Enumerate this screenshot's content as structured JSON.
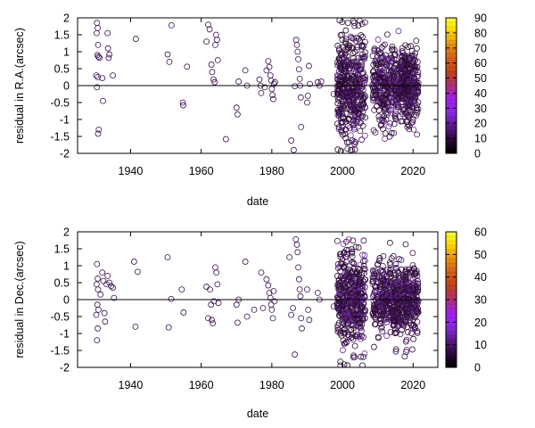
{
  "chart_data": [
    {
      "type": "scatter",
      "title": "",
      "xlabel": "date",
      "ylabel": "residual in R.A.(arcsec)",
      "xlim": [
        1925,
        2027
      ],
      "ylim": [
        -2,
        2
      ],
      "xticks": [
        1940,
        1960,
        1980,
        2000,
        2020
      ],
      "yticks": [
        -2,
        -1.5,
        -1,
        -0.5,
        0,
        0.5,
        1,
        1.5,
        2
      ],
      "ytick_labels": [
        "-2",
        "-1.5",
        "-1",
        "-0.5",
        "0",
        "0.5",
        "1",
        "1.5",
        "2"
      ],
      "zero_line": 0,
      "grid": false,
      "legend": "none",
      "colorbar": {
        "range": [
          0,
          90
        ],
        "ticks": [
          0,
          10,
          20,
          30,
          40,
          50,
          60,
          70,
          80,
          90
        ],
        "colors": [
          "#000000",
          "#2a0a3a",
          "#5a1a8a",
          "#8b2be2",
          "#a020f0",
          "#b0307a",
          "#c2401a",
          "#d2601a",
          "#e89010",
          "#ffd700",
          "#ffff30"
        ]
      },
      "marker_color": "#3a1050",
      "sparse": [
        [
          1930.5,
          1.85
        ],
        [
          1930.7,
          1.7
        ],
        [
          1930.4,
          1.55
        ],
        [
          1930.8,
          1.2
        ],
        [
          1930.6,
          0.9
        ],
        [
          1930.9,
          0.85
        ],
        [
          1930.3,
          0.3
        ],
        [
          1930.7,
          0.25
        ],
        [
          1930.5,
          -0.05
        ],
        [
          1931.2,
          0.82
        ],
        [
          1931.0,
          -1.3
        ],
        [
          1930.8,
          -1.42
        ],
        [
          1932.0,
          0.22
        ],
        [
          1932.2,
          -0.45
        ],
        [
          1933.5,
          1.55
        ],
        [
          1933.6,
          1.1
        ],
        [
          1933.8,
          0.82
        ],
        [
          1934.0,
          0.92
        ],
        [
          1935.0,
          0.3
        ],
        [
          1941.5,
          1.38
        ],
        [
          1950.5,
          0.92
        ],
        [
          1951.0,
          0.7
        ],
        [
          1951.6,
          1.78
        ],
        [
          1954.8,
          -0.5
        ],
        [
          1954.9,
          -0.58
        ],
        [
          1956.0,
          0.56
        ],
        [
          1961.5,
          1.3
        ],
        [
          1962.0,
          1.8
        ],
        [
          1962.4,
          1.66
        ],
        [
          1962.9,
          0.62
        ],
        [
          1963.1,
          0.4
        ],
        [
          1963.5,
          0.18
        ],
        [
          1963.8,
          0.1
        ],
        [
          1964.0,
          1.2
        ],
        [
          1964.2,
          1.5
        ],
        [
          1964.5,
          1.35
        ],
        [
          1964.7,
          0.75
        ],
        [
          1967.0,
          -1.58
        ],
        [
          1970.0,
          -0.65
        ],
        [
          1970.3,
          -0.85
        ],
        [
          1970.6,
          0.12
        ],
        [
          1972.5,
          0.45
        ],
        [
          1973.0,
          0.0
        ],
        [
          1976.5,
          0.18
        ],
        [
          1976.8,
          0.0
        ],
        [
          1977.0,
          -0.22
        ],
        [
          1978.0,
          -0.05
        ],
        [
          1978.5,
          0.45
        ],
        [
          1979.0,
          0.72
        ],
        [
          1979.3,
          0.55
        ],
        [
          1979.6,
          0.3
        ],
        [
          1979.8,
          0.15
        ],
        [
          1980.0,
          -0.1
        ],
        [
          1980.2,
          -0.28
        ],
        [
          1980.4,
          -0.4
        ],
        [
          1980.6,
          0.05
        ],
        [
          1980.9,
          0.1
        ],
        [
          1985.5,
          -1.62
        ],
        [
          1986.2,
          -1.9
        ],
        [
          1986.5,
          -0.02
        ],
        [
          1986.9,
          1.35
        ],
        [
          1987.1,
          1.2
        ],
        [
          1987.3,
          1.0
        ],
        [
          1987.5,
          0.78
        ],
        [
          1987.7,
          0.48
        ],
        [
          1987.9,
          0.2
        ],
        [
          1988.0,
          0.0
        ],
        [
          1988.2,
          -0.35
        ],
        [
          1988.3,
          -1.22
        ],
        [
          1990.0,
          -0.5
        ],
        [
          1990.2,
          -0.3
        ],
        [
          1990.5,
          0.58
        ],
        [
          1990.8,
          0.05
        ],
        [
          1993.0,
          0.1
        ],
        [
          1993.5,
          0.0
        ],
        [
          1994.0,
          0.12
        ],
        [
          1997.5,
          -0.25
        ]
      ],
      "dense_clusters": [
        {
          "x_range": [
            1998.5,
            2006.5
          ],
          "count": 420,
          "y_spread": 0.8,
          "y_extent": [
            -1.95,
            1.95
          ]
        },
        {
          "x_range": [
            2008.5,
            2014.5
          ],
          "count": 260,
          "y_spread": 0.55,
          "y_extent": [
            -1.6,
            1.7
          ]
        },
        {
          "x_range": [
            2014.5,
            2021.5
          ],
          "count": 360,
          "y_spread": 0.55,
          "y_extent": [
            -1.9,
            1.7
          ]
        }
      ]
    },
    {
      "type": "scatter",
      "title": "",
      "xlabel": "date",
      "ylabel": "residual in Dec.(arcsec)",
      "xlim": [
        1925,
        2027
      ],
      "ylim": [
        -2,
        2
      ],
      "xticks": [
        1940,
        1960,
        1980,
        2000,
        2020
      ],
      "yticks": [
        -2,
        -1.5,
        -1,
        -0.5,
        0,
        0.5,
        1,
        1.5,
        2
      ],
      "ytick_labels": [
        "-2",
        "-1.5",
        "-1",
        "-0.5",
        "0",
        "0.5",
        "1",
        "1.5",
        "2"
      ],
      "zero_line": 0,
      "grid": false,
      "legend": "none",
      "colorbar": {
        "range": [
          0,
          60
        ],
        "ticks": [
          0,
          10,
          20,
          30,
          40,
          50,
          60
        ],
        "colors": [
          "#000000",
          "#2a0a3a",
          "#5a1a8a",
          "#8b2be2",
          "#a020f0",
          "#b0307a",
          "#c2401a",
          "#d2601a",
          "#e89010",
          "#ffd700",
          "#ffff30"
        ]
      },
      "marker_color": "#3a1050",
      "sparse": [
        [
          1930.5,
          1.05
        ],
        [
          1930.7,
          0.62
        ],
        [
          1930.4,
          0.45
        ],
        [
          1930.8,
          0.3
        ],
        [
          1930.6,
          -0.15
        ],
        [
          1930.9,
          -0.3
        ],
        [
          1930.3,
          -0.45
        ],
        [
          1930.7,
          -0.85
        ],
        [
          1930.5,
          -1.2
        ],
        [
          1931.5,
          0.15
        ],
        [
          1932.0,
          0.8
        ],
        [
          1932.3,
          0.55
        ],
        [
          1932.6,
          -0.4
        ],
        [
          1932.8,
          -0.65
        ],
        [
          1933.2,
          0.45
        ],
        [
          1933.5,
          0.7
        ],
        [
          1934.0,
          0.5
        ],
        [
          1934.5,
          0.4
        ],
        [
          1935.0,
          0.35
        ],
        [
          1935.3,
          0.05
        ],
        [
          1941.0,
          1.12
        ],
        [
          1941.4,
          -0.8
        ],
        [
          1942.0,
          0.82
        ],
        [
          1950.5,
          1.25
        ],
        [
          1950.8,
          -0.82
        ],
        [
          1951.5,
          0.02
        ],
        [
          1954.5,
          0.3
        ],
        [
          1955.0,
          -0.38
        ],
        [
          1961.5,
          0.38
        ],
        [
          1962.0,
          -0.55
        ],
        [
          1962.5,
          0.3
        ],
        [
          1962.8,
          -0.15
        ],
        [
          1963.0,
          -0.6
        ],
        [
          1963.3,
          -0.7
        ],
        [
          1963.6,
          -0.05
        ],
        [
          1964.0,
          0.95
        ],
        [
          1964.3,
          0.8
        ],
        [
          1964.6,
          0.45
        ],
        [
          1964.9,
          -0.1
        ],
        [
          1970.0,
          -0.15
        ],
        [
          1970.3,
          -0.68
        ],
        [
          1970.6,
          0.0
        ],
        [
          1972.5,
          1.12
        ],
        [
          1973.0,
          -0.5
        ],
        [
          1975.0,
          -0.3
        ],
        [
          1977.0,
          0.8
        ],
        [
          1977.5,
          -0.25
        ],
        [
          1978.5,
          0.6
        ],
        [
          1979.0,
          0.42
        ],
        [
          1979.3,
          0.2
        ],
        [
          1979.6,
          0.05
        ],
        [
          1979.8,
          -0.15
        ],
        [
          1980.0,
          -0.3
        ],
        [
          1980.3,
          -0.55
        ],
        [
          1980.5,
          0.25
        ],
        [
          1980.8,
          -0.05
        ],
        [
          1985.0,
          1.25
        ],
        [
          1985.5,
          -0.45
        ],
        [
          1986.0,
          -0.25
        ],
        [
          1986.5,
          -1.62
        ],
        [
          1986.8,
          1.78
        ],
        [
          1987.1,
          1.62
        ],
        [
          1987.3,
          1.4
        ],
        [
          1987.5,
          0.95
        ],
        [
          1987.7,
          0.6
        ],
        [
          1987.9,
          0.3
        ],
        [
          1988.1,
          0.1
        ],
        [
          1988.3,
          -0.55
        ],
        [
          1988.5,
          -0.85
        ],
        [
          1990.0,
          0.3
        ],
        [
          1990.3,
          -0.3
        ],
        [
          1990.6,
          -0.6
        ],
        [
          1993.0,
          0.2
        ],
        [
          1993.5,
          0.0
        ],
        [
          1997.5,
          -0.2
        ]
      ],
      "dense_clusters": [
        {
          "x_range": [
            1998.5,
            2006.5
          ],
          "count": 420,
          "y_spread": 0.75,
          "y_extent": [
            -1.95,
            1.8
          ]
        },
        {
          "x_range": [
            2008.5,
            2014.5
          ],
          "count": 260,
          "y_spread": 0.5,
          "y_extent": [
            -1.7,
            1.75
          ]
        },
        {
          "x_range": [
            2014.5,
            2021.5
          ],
          "count": 360,
          "y_spread": 0.5,
          "y_extent": [
            -1.95,
            1.65
          ]
        }
      ]
    }
  ]
}
